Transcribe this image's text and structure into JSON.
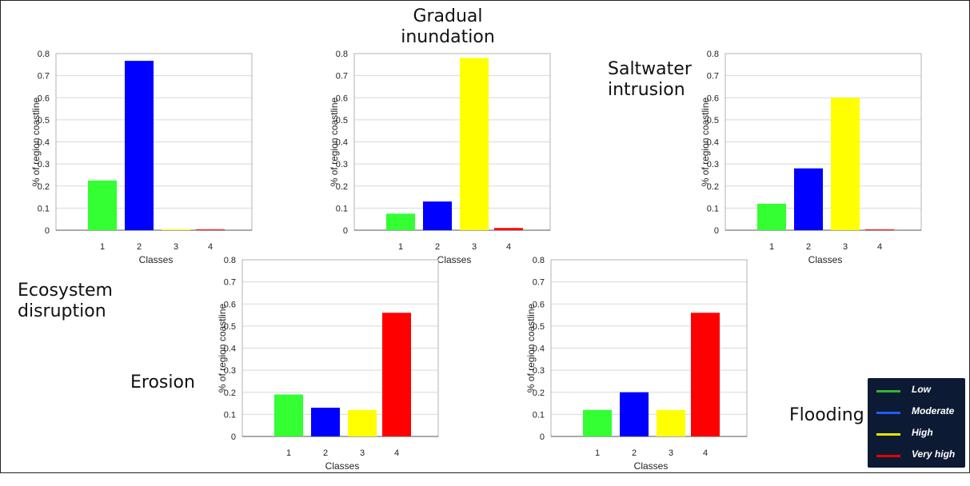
{
  "chart_data": [
    {
      "id": "c1",
      "type": "bar",
      "title": "Ecosystem disruption",
      "xlabel": "Classes",
      "ylabel": "% of region coastline",
      "categories": [
        "1",
        "2",
        "3",
        "4"
      ],
      "values": [
        0.225,
        0.767,
        0.004,
        0.003
      ],
      "colors": [
        "#33ff33",
        "#0000ff",
        "#ffff00",
        "#ff0000"
      ],
      "ylim": [
        0,
        0.8
      ],
      "yticks": [
        "0",
        "0.1",
        "0.2",
        "0.3",
        "0.4",
        "0.5",
        "0.6",
        "0.7",
        "0.8"
      ],
      "grid": true
    },
    {
      "id": "c2",
      "type": "bar",
      "title": "Gradual inundation",
      "xlabel": "Classes",
      "ylabel": "% of region coastline",
      "categories": [
        "1",
        "2",
        "3",
        "4"
      ],
      "values": [
        0.075,
        0.13,
        0.78,
        0.01
      ],
      "colors": [
        "#33ff33",
        "#0000ff",
        "#ffff00",
        "#ff0000"
      ],
      "ylim": [
        0,
        0.8
      ],
      "yticks": [
        "0",
        "0.1",
        "0.2",
        "0.3",
        "0.4",
        "0.5",
        "0.6",
        "0.7",
        "0.8"
      ],
      "grid": true
    },
    {
      "id": "c3",
      "type": "bar",
      "title": "Saltwater intrusion",
      "xlabel": "Classes",
      "ylabel": "% of region coastline",
      "categories": [
        "1",
        "2",
        "3",
        "4"
      ],
      "values": [
        0.12,
        0.28,
        0.6,
        0.003
      ],
      "colors": [
        "#33ff33",
        "#0000ff",
        "#ffff00",
        "#ff0000"
      ],
      "ylim": [
        0,
        0.8
      ],
      "yticks": [
        "0",
        "0.1",
        "0.2",
        "0.3",
        "0.4",
        "0.5",
        "0.6",
        "0.7",
        "0.8"
      ],
      "grid": true
    },
    {
      "id": "c4",
      "type": "bar",
      "title": "Erosion",
      "xlabel": "Classes",
      "ylabel": "% of region coastline",
      "categories": [
        "1",
        "2",
        "3",
        "4"
      ],
      "values": [
        0.19,
        0.13,
        0.12,
        0.56
      ],
      "colors": [
        "#33ff33",
        "#0000ff",
        "#ffff00",
        "#ff0000"
      ],
      "ylim": [
        0,
        0.8
      ],
      "yticks": [
        "0",
        "0.1",
        "0.2",
        "0.3",
        "0.4",
        "0.5",
        "0.6",
        "0.7",
        "0.8"
      ],
      "grid": true
    },
    {
      "id": "c5",
      "type": "bar",
      "title": "Flooding",
      "xlabel": "Classes",
      "ylabel": "% of region coastline",
      "categories": [
        "1",
        "2",
        "3",
        "4"
      ],
      "values": [
        0.12,
        0.2,
        0.12,
        0.56
      ],
      "colors": [
        "#33ff33",
        "#0000ff",
        "#ffff00",
        "#ff0000"
      ],
      "ylim": [
        0,
        0.8
      ],
      "yticks": [
        "0",
        "0.1",
        "0.2",
        "0.3",
        "0.4",
        "0.5",
        "0.6",
        "0.7",
        "0.8"
      ],
      "grid": true
    }
  ],
  "titles": {
    "gradual_line1": "Gradual",
    "gradual_line2": "inundation",
    "saltwater_line1": "Saltwater",
    "saltwater_line2": "intrusion",
    "ecosystem_line1": "Ecosystem",
    "ecosystem_line2": "disruption",
    "erosion": "Erosion",
    "flooding": "Flooding"
  },
  "legend": {
    "items": [
      {
        "label": "Low",
        "color": "#2db82d"
      },
      {
        "label": "Moderate",
        "color": "#1e5cff"
      },
      {
        "label": "High",
        "color": "#e6e600"
      },
      {
        "label": "Very high",
        "color": "#e60000"
      }
    ]
  }
}
